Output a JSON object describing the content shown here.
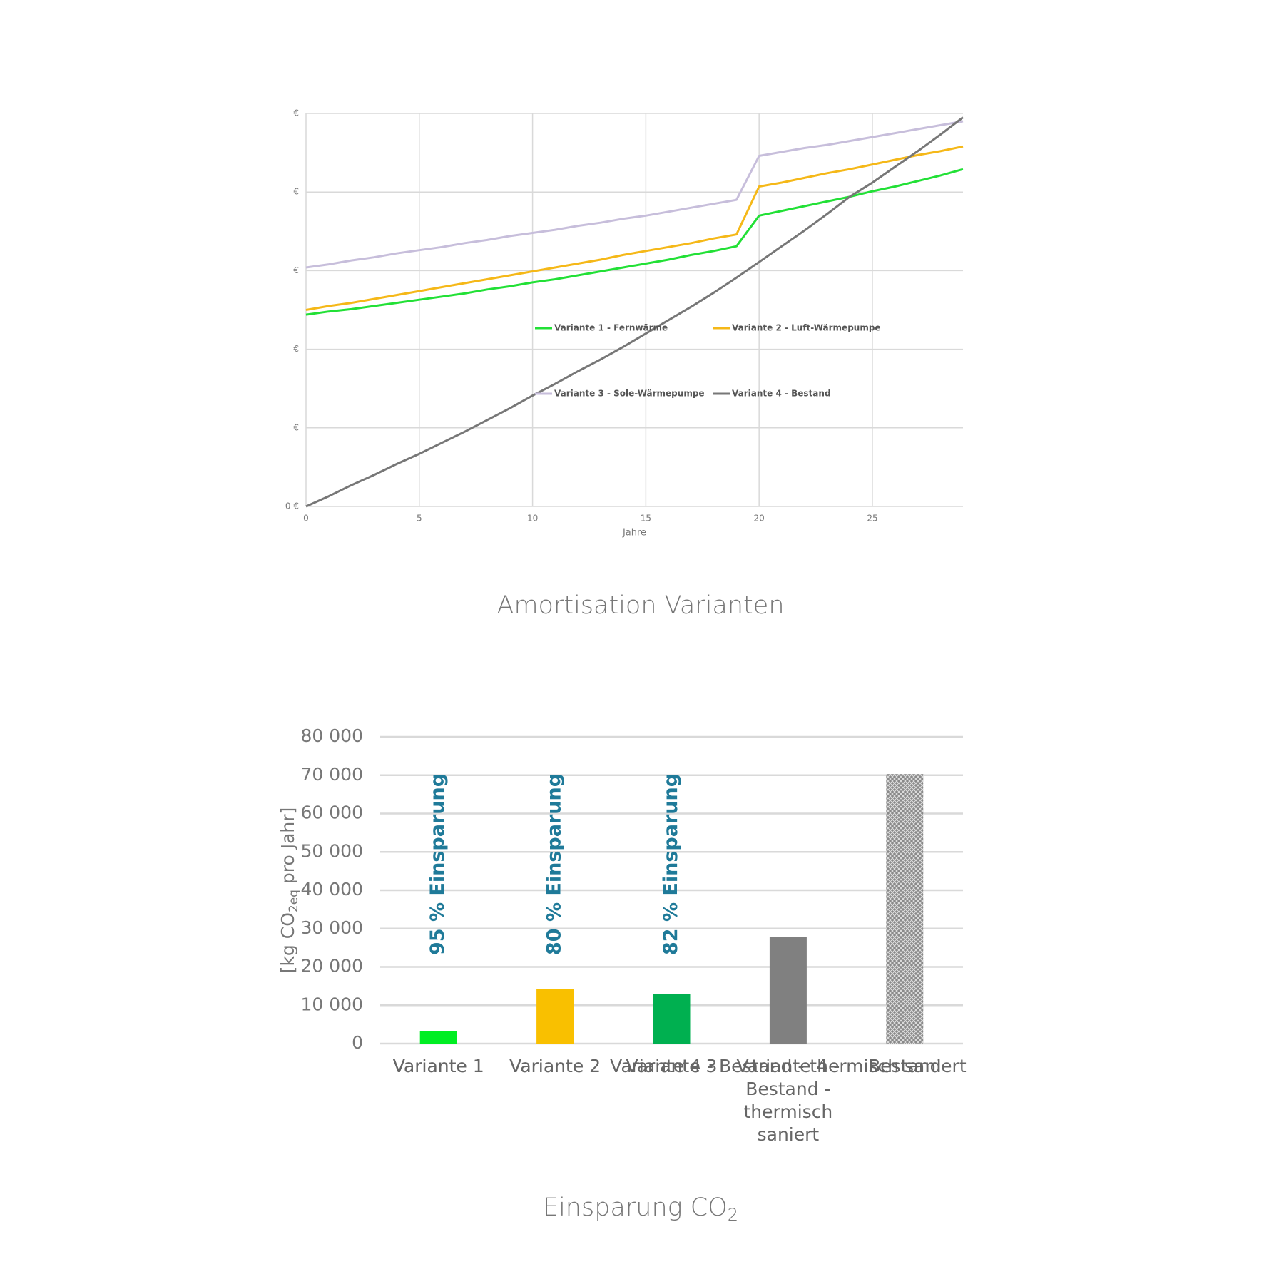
{
  "chart_data": [
    {
      "type": "line",
      "title": "Amortisation Varianten",
      "xlabel": "Jahre",
      "x": [
        0,
        1,
        2,
        3,
        4,
        5,
        6,
        7,
        8,
        9,
        10,
        11,
        12,
        13,
        14,
        15,
        16,
        17,
        18,
        19,
        20,
        21,
        22,
        23,
        24,
        25,
        26,
        27,
        28,
        29
      ],
      "xlim": [
        0,
        29
      ],
      "xticks": [
        0,
        5,
        10,
        15,
        20,
        25
      ],
      "ylim": [
        0,
        5
      ],
      "yticks": [
        {
          "value": 0,
          "label": "0 €"
        },
        {
          "value": 1,
          "label": "€"
        },
        {
          "value": 2,
          "label": "€"
        },
        {
          "value": 3,
          "label": "€"
        },
        {
          "value": 4,
          "label": "€"
        },
        {
          "value": 5,
          "label": "€"
        }
      ],
      "grid": true,
      "legend": "center",
      "series": [
        {
          "name": "Variante 1 - Fernwärme",
          "color": "#22e036",
          "values": [
            2.44,
            2.48,
            2.51,
            2.55,
            2.59,
            2.63,
            2.67,
            2.71,
            2.76,
            2.8,
            2.85,
            2.89,
            2.94,
            2.99,
            3.04,
            3.09,
            3.14,
            3.2,
            3.25,
            3.31,
            3.7,
            3.76,
            3.82,
            3.88,
            3.94,
            4.01,
            4.07,
            4.14,
            4.21,
            4.29
          ]
        },
        {
          "name": "Variante 2 - Luft-Wärmepumpe",
          "color": "#f5b818",
          "values": [
            2.5,
            2.55,
            2.59,
            2.64,
            2.69,
            2.74,
            2.79,
            2.84,
            2.89,
            2.94,
            2.99,
            3.04,
            3.09,
            3.14,
            3.2,
            3.25,
            3.3,
            3.35,
            3.41,
            3.46,
            4.07,
            4.12,
            4.18,
            4.24,
            4.29,
            4.35,
            4.41,
            4.47,
            4.52,
            4.58
          ]
        },
        {
          "name": "Variante 3 - Sole-Wärmepumpe",
          "color": "#c7bedb",
          "values": [
            3.04,
            3.08,
            3.13,
            3.17,
            3.22,
            3.26,
            3.3,
            3.35,
            3.39,
            3.44,
            3.48,
            3.52,
            3.57,
            3.61,
            3.66,
            3.7,
            3.75,
            3.8,
            3.85,
            3.9,
            4.46,
            4.51,
            4.56,
            4.6,
            4.65,
            4.7,
            4.75,
            4.8,
            4.85,
            4.9
          ]
        },
        {
          "name": "Variante 4 - Bestand",
          "color": "#777777",
          "values": [
            0,
            0.13,
            0.27,
            0.4,
            0.54,
            0.67,
            0.81,
            0.95,
            1.1,
            1.25,
            1.41,
            1.56,
            1.72,
            1.87,
            2.03,
            2.2,
            2.37,
            2.54,
            2.72,
            2.91,
            3.11,
            3.31,
            3.51,
            3.72,
            3.94,
            4.12,
            4.32,
            4.52,
            4.73,
            4.95
          ]
        }
      ]
    },
    {
      "type": "bar",
      "title": {
        "text": "Einsparung CO",
        "sub": "2"
      },
      "ylabel": {
        "text": "[kg CO",
        "sub": "2eq",
        "after": " pro Jahr]"
      },
      "categories": [
        "Variante 1",
        "Variante 2",
        "Variante 3",
        "Variante 4 - Bestand - thermisch saniert",
        "Bestand"
      ],
      "values": [
        3300,
        14300,
        13000,
        27900,
        70300
      ],
      "colors": [
        "#00ee22",
        "#f9c000",
        "#00b050",
        "#808080",
        "#808080"
      ],
      "patterned": [
        false,
        false,
        false,
        false,
        true
      ],
      "annotations": [
        "95 % Einsparung",
        "80 % Einsparung",
        "82 % Einsparung"
      ],
      "annotation_color": "#1f7a99",
      "ylim": [
        0,
        80000
      ],
      "yticks": [
        0,
        {
          "value": 10000,
          "label": "10 000"
        },
        {
          "value": 20000,
          "label": "20 000"
        },
        {
          "value": 30000,
          "label": "30 000"
        },
        {
          "value": 40000,
          "label": "40 000"
        },
        {
          "value": 50000,
          "label": "50 000"
        },
        {
          "value": 60000,
          "label": "60 000"
        },
        {
          "value": 70000,
          "label": "70 000"
        },
        {
          "value": 80000,
          "label": "80 000"
        }
      ],
      "grid": true
    }
  ]
}
